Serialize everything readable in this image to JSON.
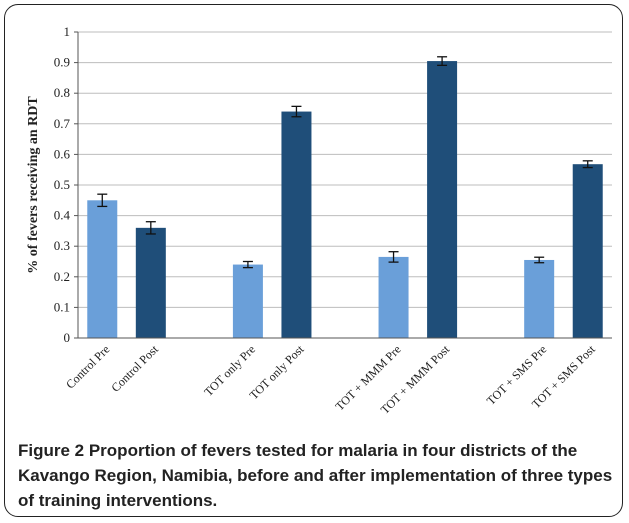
{
  "chart_data": {
    "type": "bar",
    "ylabel": "% of fevers receiving an RDT",
    "ylim": [
      0,
      1
    ],
    "yticks": [
      0,
      0.1,
      0.2,
      0.3,
      0.4,
      0.5,
      0.6,
      0.7,
      0.8,
      0.9,
      1
    ],
    "ytick_labels": [
      "0",
      "0.1",
      "0.2",
      "0.3",
      "0.4",
      "0.5",
      "0.6",
      "0.7",
      "0.8",
      "0.9",
      "1"
    ],
    "grid": true,
    "legend": "none",
    "categories": [
      "Control Pre",
      "Control Post",
      "TOT only Pre",
      "TOT only Post",
      "TOT + MMM Pre",
      "TOT + MMM Post",
      "TOT + SMS  Pre",
      "TOT + SMS  Post"
    ],
    "values": [
      0.45,
      0.36,
      0.24,
      0.74,
      0.265,
      0.905,
      0.255,
      0.568
    ],
    "error": [
      0.02,
      0.02,
      0.01,
      0.017,
      0.017,
      0.014,
      0.009,
      0.011
    ],
    "colors": [
      "#6a9fd9",
      "#1f4e79",
      "#6a9fd9",
      "#1f4e79",
      "#6a9fd9",
      "#1f4e79",
      "#6a9fd9",
      "#1f4e79"
    ]
  },
  "caption": {
    "figure_label": "Figure 2",
    "text": " Proportion of fevers tested for malaria in four districts of the Kavango Region, Namibia, before and after implementation of three types of training interventions."
  }
}
